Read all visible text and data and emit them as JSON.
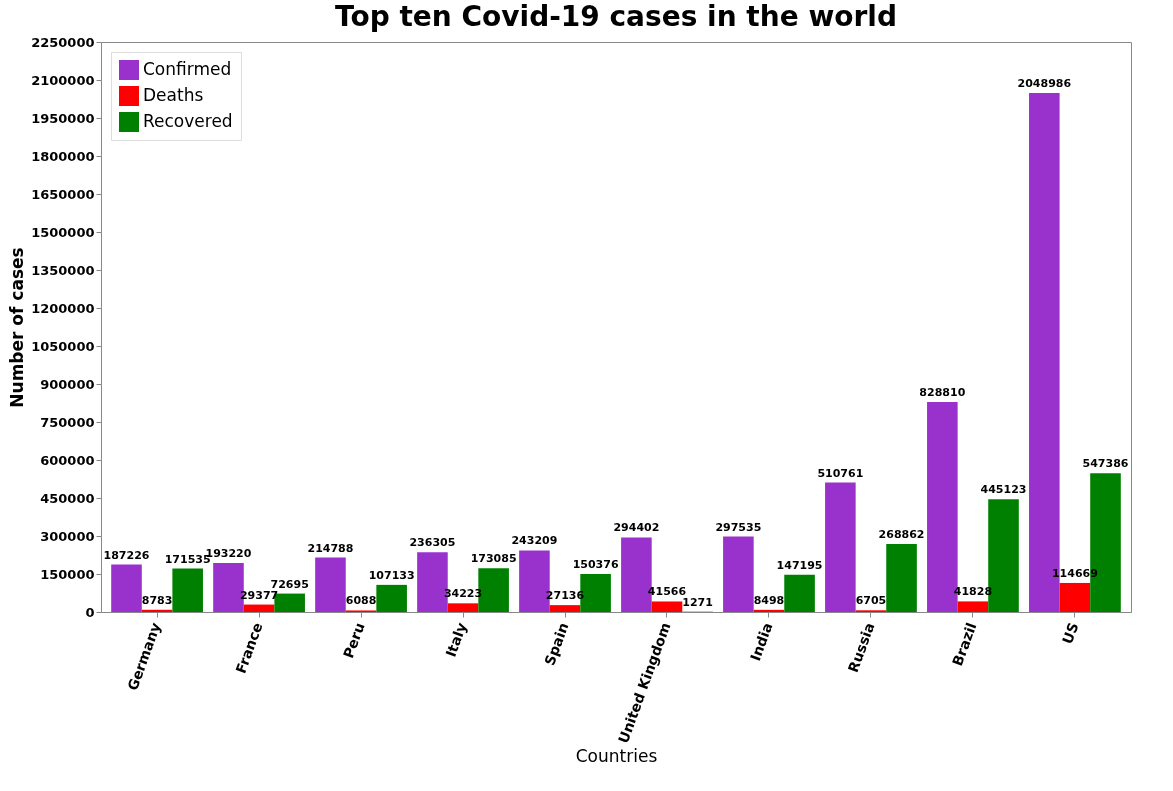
{
  "chart_data": {
    "type": "bar",
    "title": "Top ten Covid-19 cases in the world",
    "xlabel": "Countries",
    "ylabel": "Number of cases",
    "categories": [
      "Germany",
      "France",
      "Peru",
      "Italy",
      "Spain",
      "United Kingdom",
      "India",
      "Russia",
      "Brazil",
      "US"
    ],
    "series": [
      {
        "name": "Confirmed",
        "color": "#9932cc",
        "values": [
          187226,
          193220,
          214788,
          236305,
          243209,
          294402,
          297535,
          510761,
          828810,
          2048986
        ]
      },
      {
        "name": "Deaths",
        "color": "#ff0000",
        "values": [
          8783,
          29377,
          6088,
          34223,
          27136,
          41566,
          8498,
          6705,
          41828,
          114669
        ]
      },
      {
        "name": "Recovered",
        "color": "#008000",
        "values": [
          171535,
          72695,
          107133,
          173085,
          150376,
          1271,
          147195,
          268862,
          445123,
          547386
        ]
      }
    ],
    "ylim": [
      0,
      2250000
    ],
    "yticks": [
      0,
      150000,
      300000,
      450000,
      600000,
      750000,
      900000,
      1050000,
      1200000,
      1350000,
      1500000,
      1650000,
      1800000,
      1950000,
      2100000,
      2250000
    ],
    "grid": false,
    "legend": "top left",
    "data_labels": true
  }
}
